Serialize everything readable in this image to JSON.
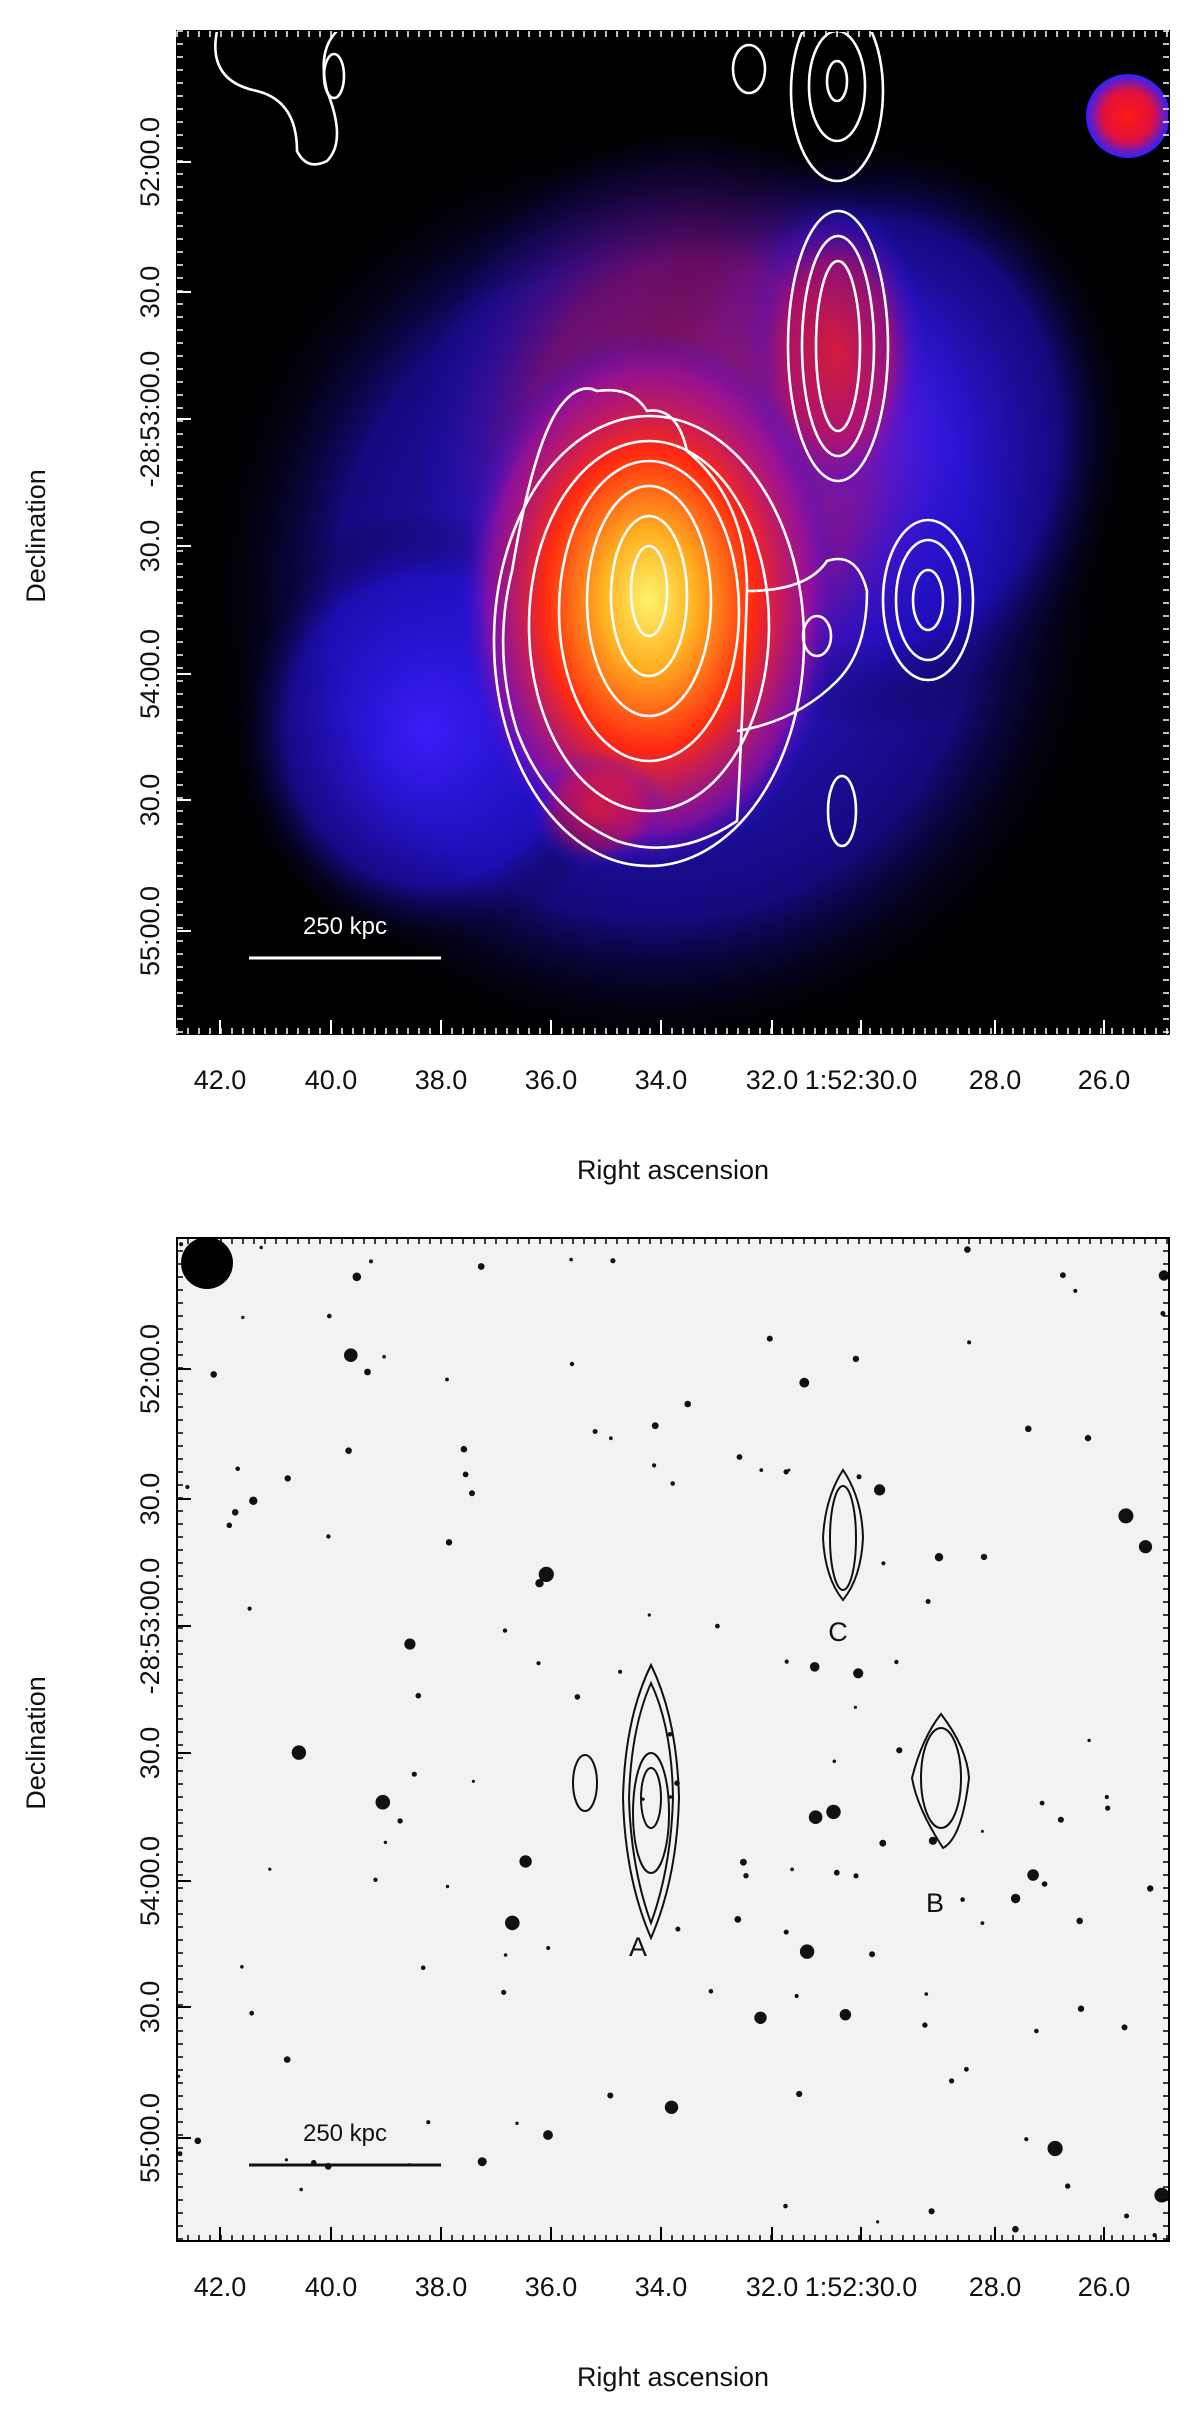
{
  "panels": [
    {
      "x_ticks": [
        "42.0",
        "40.0",
        "38.0",
        "36.0",
        "34.0",
        "32.0",
        "1:52:30.0",
        "28.0",
        "26.0"
      ],
      "y_ticks": [
        "52:00.0",
        "30.0",
        "-28:53:00.0",
        "30.0",
        "54:00.0",
        "30.0",
        "55:00.0"
      ],
      "x_label": "Right ascension",
      "y_label": "Declination",
      "scale_bar": "250 kpc"
    },
    {
      "x_ticks": [
        "42.0",
        "40.0",
        "38.0",
        "36.0",
        "34.0",
        "32.0",
        "1:52:30.0",
        "28.0",
        "26.0"
      ],
      "y_ticks": [
        "52:00.0",
        "30.0",
        "-28:53:00.0",
        "30.0",
        "54:00.0",
        "30.0",
        "55:00.0"
      ],
      "x_label": "Right ascension",
      "y_label": "Declination",
      "scale_bar": "250 kpc",
      "sources": [
        "A",
        "B",
        "C"
      ]
    }
  ]
}
